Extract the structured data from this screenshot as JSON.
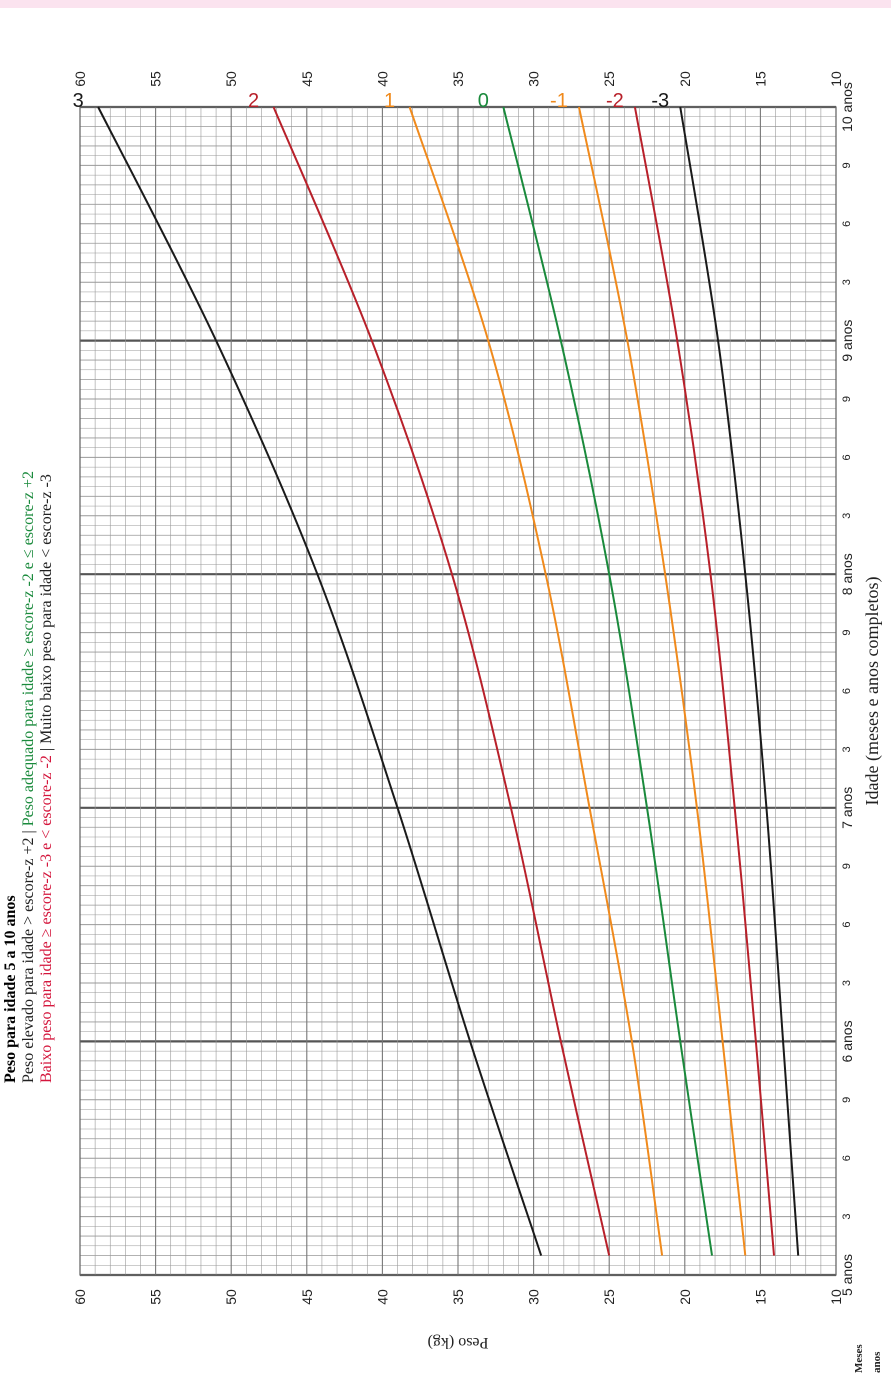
{
  "header": {
    "title": "Peso para idade 5 a 10 anos",
    "legend_high": "Peso elevado para idade > escore-z +2",
    "sep": " | ",
    "legend_ok": "Peso adequado para idade ≥ escore-z -2 e ≤ escore-z +2",
    "legend_low": "Baixo peso para idade ≥ escore-z -3 e < escore-z -2",
    "legend_very_low": "Muito baixo peso para idade < escore-z -3"
  },
  "chart_data": {
    "type": "line",
    "xlabel": "Idade (meses e anos completos)",
    "ylabel": "Peso (kg)",
    "corner_label_months": "Meses",
    "corner_label_years": "anos",
    "xlim": [
      60,
      120
    ],
    "ylim": [
      10,
      60
    ],
    "y_ticks": [
      "10",
      "15",
      "20",
      "25",
      "30",
      "35",
      "40",
      "45",
      "50",
      "55",
      "60"
    ],
    "x_month_ticks": [
      {
        "x": 63,
        "label": "3"
      },
      {
        "x": 66,
        "label": "6"
      },
      {
        "x": 69,
        "label": "9"
      },
      {
        "x": 75,
        "label": "3"
      },
      {
        "x": 78,
        "label": "6"
      },
      {
        "x": 81,
        "label": "9"
      },
      {
        "x": 87,
        "label": "3"
      },
      {
        "x": 90,
        "label": "6"
      },
      {
        "x": 93,
        "label": "9"
      },
      {
        "x": 99,
        "label": "3"
      },
      {
        "x": 102,
        "label": "6"
      },
      {
        "x": 105,
        "label": "9"
      },
      {
        "x": 111,
        "label": "3"
      },
      {
        "x": 114,
        "label": "6"
      },
      {
        "x": 117,
        "label": "9"
      }
    ],
    "x_year_ticks": [
      {
        "x": 60,
        "label": "5 anos"
      },
      {
        "x": 72,
        "label": "6 anos"
      },
      {
        "x": 84,
        "label": "7 anos"
      },
      {
        "x": 96,
        "label": "8 anos"
      },
      {
        "x": 108,
        "label": "9 anos"
      },
      {
        "x": 120,
        "label": "10 anos"
      }
    ],
    "series": [
      {
        "name": "3",
        "color": "#1a1a1a",
        "x": [
          61,
          72,
          84,
          96,
          108,
          120
        ],
        "y": [
          29.5,
          34.2,
          39.0,
          44.3,
          51.0,
          58.8
        ]
      },
      {
        "name": "2",
        "color": "#b8202a",
        "x": [
          61,
          72,
          84,
          96,
          108,
          120
        ],
        "y": [
          25.0,
          28.2,
          31.5,
          35.4,
          40.7,
          47.2
        ]
      },
      {
        "name": "1",
        "color": "#f08a1c",
        "x": [
          61,
          72,
          84,
          96,
          108,
          120
        ],
        "y": [
          21.5,
          23.5,
          26.3,
          29.2,
          33.0,
          38.2
        ]
      },
      {
        "name": "0",
        "color": "#1a8a3c",
        "x": [
          61,
          72,
          84,
          96,
          108,
          120
        ],
        "y": [
          18.2,
          20.3,
          22.5,
          25.0,
          28.2,
          32.0
        ]
      },
      {
        "name": "-1",
        "color": "#f08a1c",
        "x": [
          61,
          72,
          84,
          96,
          108,
          120
        ],
        "y": [
          16.0,
          17.5,
          19.2,
          21.3,
          23.8,
          27.0
        ]
      },
      {
        "name": "-2",
        "color": "#b8202a",
        "x": [
          61,
          72,
          84,
          96,
          108,
          120
        ],
        "y": [
          14.1,
          15.3,
          16.7,
          18.3,
          20.5,
          23.3
        ]
      },
      {
        "name": "-3",
        "color": "#1a1a1a",
        "x": [
          61,
          72,
          84,
          96,
          108,
          120
        ],
        "y": [
          12.5,
          13.5,
          14.6,
          16.0,
          17.8,
          20.3
        ]
      }
    ]
  }
}
